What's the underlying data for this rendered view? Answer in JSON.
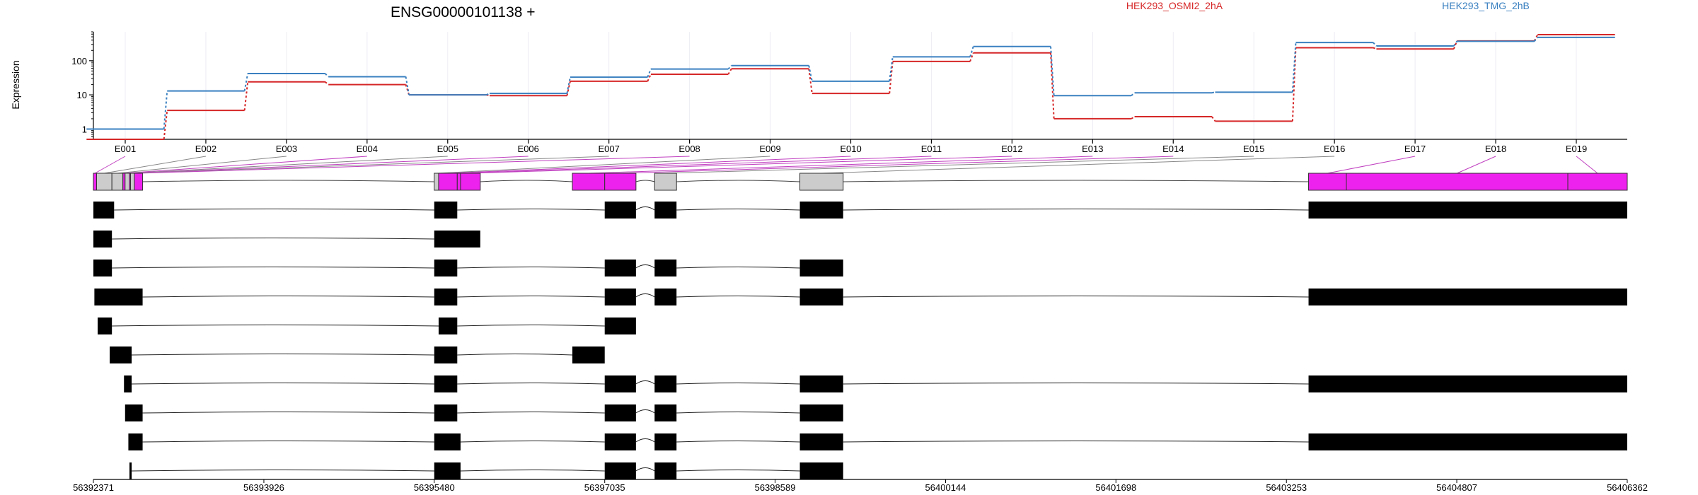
{
  "chart_data": {
    "type": "line",
    "title": "ENSG00000101138 +",
    "xlabel": "",
    "ylabel": "Expression",
    "y_scale": "log",
    "ylim": [
      0.5,
      700
    ],
    "yticks": [
      1,
      10,
      100
    ],
    "ytick_labels": [
      "1",
      "10",
      "100"
    ],
    "grid": true,
    "legend_placement": "top",
    "categories": [
      "E001",
      "E002",
      "E003",
      "E004",
      "E005",
      "E006",
      "E007",
      "E008",
      "E009",
      "E010",
      "E011",
      "E012",
      "E013",
      "E014",
      "E015",
      "E016",
      "E017",
      "E018",
      "E019"
    ],
    "series": [
      {
        "name": "HEK293_OSMI2_2hA",
        "color": "#d62728",
        "values": [
          0.5,
          3.5,
          24,
          20,
          10,
          9.5,
          25,
          40,
          58,
          11,
          95,
          170,
          2.0,
          2.3,
          1.7,
          240,
          220,
          380,
          580
        ]
      },
      {
        "name": "HEK293_TMG_2hB",
        "color": "#3a80c0",
        "values": [
          1.0,
          13,
          42,
          34,
          10,
          11,
          33,
          57,
          72,
          25,
          130,
          260,
          9.5,
          11.5,
          12,
          340,
          270,
          370,
          480
        ]
      }
    ],
    "genome_axis": {
      "ticks": [
        "56392371",
        "56393926",
        "56395480",
        "56397035",
        "56398589",
        "56400144",
        "56401698",
        "56403253",
        "56404807",
        "56406362"
      ]
    },
    "gene_model": {
      "exon_bins": [
        {
          "label": "E001",
          "gstart": 56392371,
          "gend": 56392400,
          "novel": true
        },
        {
          "label": "E002",
          "gstart": 56392400,
          "gend": 56392540,
          "novel": false
        },
        {
          "label": "E003",
          "gstart": 56392540,
          "gend": 56392640,
          "novel": false
        },
        {
          "label": "E004",
          "gstart": 56392640,
          "gend": 56392660,
          "novel": true
        },
        {
          "label": "E005",
          "gstart": 56392660,
          "gend": 56392700,
          "novel": false
        },
        {
          "label": "E006",
          "gstart": 56392700,
          "gend": 56392710,
          "novel": true
        },
        {
          "label": "E007",
          "gstart": 56392710,
          "gend": 56392745,
          "novel": false
        },
        {
          "label": "E008",
          "gstart": 56392745,
          "gend": 56392820,
          "novel": true
        },
        {
          "label": "E009",
          "gstart": 56395480,
          "gend": 56395520,
          "novel": false
        },
        {
          "label": "E010",
          "gstart": 56395520,
          "gend": 56395690,
          "novel": true
        },
        {
          "label": "E011",
          "gstart": 56395690,
          "gend": 56395720,
          "novel": true
        },
        {
          "label": "E012",
          "gstart": 56395720,
          "gend": 56395900,
          "novel": true
        },
        {
          "label": "E013",
          "gstart": 56396740,
          "gend": 56397035,
          "novel": true
        },
        {
          "label": "E014",
          "gstart": 56397035,
          "gend": 56397320,
          "novel": true
        },
        {
          "label": "E015",
          "gstart": 56397490,
          "gend": 56397690,
          "novel": false
        },
        {
          "label": "E016",
          "gstart": 56398815,
          "gend": 56399210,
          "novel": false
        },
        {
          "label": "E017",
          "gstart": 56403455,
          "gend": 56403800,
          "novel": true
        },
        {
          "label": "E018",
          "gstart": 56403800,
          "gend": 56405820,
          "novel": true
        },
        {
          "label": "E019",
          "gstart": 56405820,
          "gend": 56406362,
          "novel": true
        }
      ],
      "transcripts": [
        {
          "exons": [
            [
              56392371,
              56392560
            ],
            [
              56395480,
              56395690
            ],
            [
              56397035,
              56397320
            ],
            [
              56397490,
              56397690
            ],
            [
              56398815,
              56399210
            ],
            [
              56403455,
              56406362
            ]
          ]
        },
        {
          "exons": [
            [
              56392371,
              56392540
            ],
            [
              56395480,
              56395900
            ]
          ]
        },
        {
          "exons": [
            [
              56392371,
              56392540
            ],
            [
              56395480,
              56395690
            ],
            [
              56397035,
              56397320
            ],
            [
              56397490,
              56397690
            ],
            [
              56398815,
              56399210
            ]
          ]
        },
        {
          "exons": [
            [
              56392380,
              56392820
            ],
            [
              56395480,
              56395690
            ],
            [
              56397035,
              56397320
            ],
            [
              56397490,
              56397690
            ],
            [
              56398815,
              56399210
            ],
            [
              56403455,
              56406362
            ]
          ]
        },
        {
          "exons": [
            [
              56392410,
              56392540
            ],
            [
              56395520,
              56395690
            ],
            [
              56397035,
              56397320
            ]
          ]
        },
        {
          "exons": [
            [
              56392520,
              56392720
            ],
            [
              56395480,
              56395690
            ],
            [
              56396740,
              56397035
            ]
          ]
        },
        {
          "exons": [
            [
              56392650,
              56392720
            ],
            [
              56395480,
              56395690
            ],
            [
              56397035,
              56397320
            ],
            [
              56397490,
              56397690
            ],
            [
              56398815,
              56399210
            ],
            [
              56403455,
              56406362
            ]
          ]
        },
        {
          "exons": [
            [
              56392660,
              56392820
            ],
            [
              56395480,
              56395690
            ],
            [
              56397035,
              56397320
            ],
            [
              56397490,
              56397690
            ],
            [
              56398815,
              56399210
            ]
          ]
        },
        {
          "exons": [
            [
              56392690,
              56392820
            ],
            [
              56395480,
              56395720
            ],
            [
              56397035,
              56397320
            ],
            [
              56397490,
              56397690
            ],
            [
              56398815,
              56399210
            ],
            [
              56403455,
              56406362
            ]
          ]
        },
        {
          "exons": [
            [
              56392700,
              56392720
            ],
            [
              56395480,
              56395720
            ],
            [
              56397035,
              56397320
            ],
            [
              56397490,
              56397690
            ],
            [
              56398815,
              56399210
            ]
          ]
        }
      ]
    }
  }
}
